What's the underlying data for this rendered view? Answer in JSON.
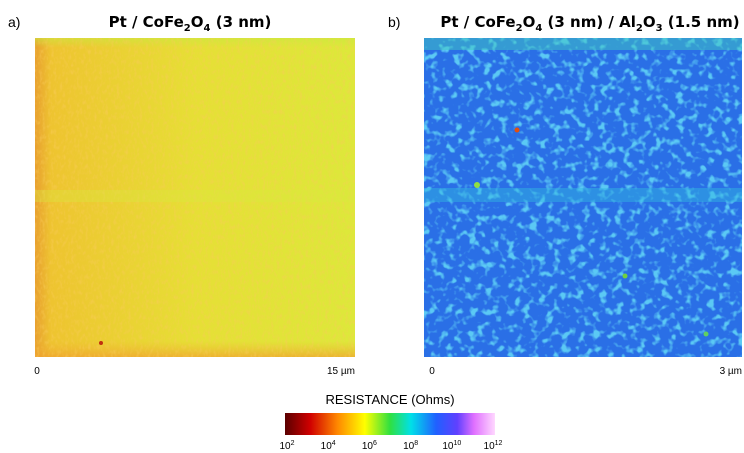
{
  "panels": [
    {
      "label": "a)",
      "title_parts": [
        "Pt / CoFe",
        "2",
        "O",
        "4",
        " (3 nm)"
      ],
      "scale_start": "0",
      "scale_end": "15 µm"
    },
    {
      "label": "b)",
      "title_parts": [
        "Pt / CoFe",
        "2",
        "O",
        "4",
        " (3 nm) / Al",
        "2",
        "O",
        "3",
        " (1.5 nm)"
      ],
      "scale_start": "0",
      "scale_end": "3 µm"
    }
  ],
  "colorbar": {
    "title": "RESISTANCE (Ohms)",
    "ticks": [
      {
        "base": "10",
        "exponent": "2"
      },
      {
        "base": "10",
        "exponent": "4"
      },
      {
        "base": "10",
        "exponent": "6"
      },
      {
        "base": "10",
        "exponent": "8"
      },
      {
        "base": "10",
        "exponent": "10"
      },
      {
        "base": "10",
        "exponent": "12"
      }
    ]
  }
}
